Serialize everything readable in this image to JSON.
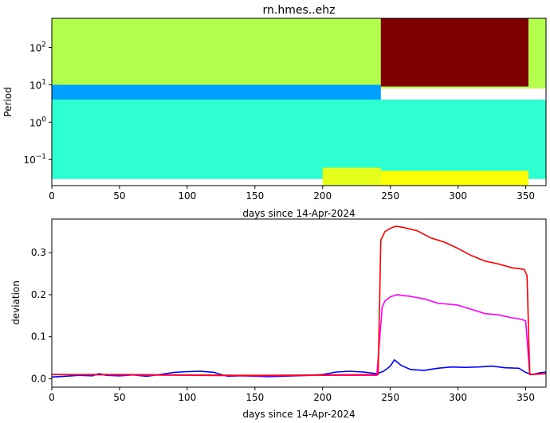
{
  "chart_data": [
    {
      "type": "heatmap",
      "title": "rn.hmes..ehz",
      "xlabel": "days since 14-Apr-2024",
      "ylabel": "Period",
      "xlim": [
        0,
        365
      ],
      "ylim": [
        0.02,
        600
      ],
      "yscale": "log",
      "x_ticks": [
        0,
        50,
        100,
        150,
        200,
        250,
        300,
        350
      ],
      "y_ticks": [
        {
          "value": 0.1,
          "label_base": "10",
          "label_exp": "−1"
        },
        {
          "value": 1,
          "label_base": "10",
          "label_exp": "0"
        },
        {
          "value": 10,
          "label_base": "10",
          "label_exp": "1"
        },
        {
          "value": 100,
          "label_base": "10",
          "label_exp": "2"
        }
      ],
      "colormap": "jet",
      "regions": [
        {
          "x": [
            0,
            365
          ],
          "period": [
            8,
            600
          ],
          "level": 0.55
        },
        {
          "x": [
            0,
            243
          ],
          "period": [
            4,
            10
          ],
          "level": 0.28
        },
        {
          "x": [
            0,
            365
          ],
          "period": [
            0.03,
            4
          ],
          "level": 0.42
        },
        {
          "x": [
            243,
            352
          ],
          "period": [
            9,
            600
          ],
          "level": 1.0
        },
        {
          "x": [
            243,
            352
          ],
          "period": [
            0.02,
            0.05
          ],
          "level": 0.62
        },
        {
          "x": [
            200,
            243
          ],
          "period": [
            0.02,
            0.06
          ],
          "level": 0.6
        }
      ]
    },
    {
      "type": "line",
      "xlabel": "days since 14-Apr-2024",
      "ylabel": "deviation",
      "xlim": [
        0,
        365
      ],
      "ylim": [
        -0.02,
        0.38
      ],
      "x_ticks": [
        0,
        50,
        100,
        150,
        200,
        250,
        300,
        350
      ],
      "y_ticks": [
        0.0,
        0.1,
        0.2,
        0.3
      ],
      "y_tick_labels": [
        "0.0",
        "0.1",
        "0.2",
        "0.3"
      ],
      "series": [
        {
          "color": "#0000ff",
          "points": [
            [
              0,
              0.004
            ],
            [
              10,
              0.006
            ],
            [
              20,
              0.008
            ],
            [
              30,
              0.007
            ],
            [
              35,
              0.012
            ],
            [
              40,
              0.008
            ],
            [
              50,
              0.007
            ],
            [
              60,
              0.009
            ],
            [
              70,
              0.006
            ],
            [
              80,
              0.01
            ],
            [
              90,
              0.015
            ],
            [
              100,
              0.017
            ],
            [
              110,
              0.018
            ],
            [
              120,
              0.015
            ],
            [
              125,
              0.01
            ],
            [
              130,
              0.006
            ],
            [
              140,
              0.007
            ],
            [
              150,
              0.006
            ],
            [
              160,
              0.005
            ],
            [
              170,
              0.006
            ],
            [
              180,
              0.007
            ],
            [
              190,
              0.008
            ],
            [
              200,
              0.01
            ],
            [
              210,
              0.016
            ],
            [
              220,
              0.018
            ],
            [
              230,
              0.016
            ],
            [
              240,
              0.012
            ],
            [
              245,
              0.018
            ],
            [
              250,
              0.03
            ],
            [
              253,
              0.045
            ],
            [
              258,
              0.032
            ],
            [
              265,
              0.022
            ],
            [
              275,
              0.02
            ],
            [
              285,
              0.025
            ],
            [
              295,
              0.028
            ],
            [
              305,
              0.027
            ],
            [
              315,
              0.028
            ],
            [
              325,
              0.03
            ],
            [
              335,
              0.026
            ],
            [
              345,
              0.025
            ],
            [
              350,
              0.015
            ],
            [
              355,
              0.01
            ],
            [
              360,
              0.014
            ],
            [
              365,
              0.016
            ]
          ]
        },
        {
          "color": "#ff00ff",
          "points": [
            [
              0,
              0.01
            ],
            [
              50,
              0.009
            ],
            [
              100,
              0.008
            ],
            [
              150,
              0.007
            ],
            [
              200,
              0.008
            ],
            [
              240,
              0.008
            ],
            [
              244,
              0.17
            ],
            [
              246,
              0.185
            ],
            [
              250,
              0.195
            ],
            [
              255,
              0.2
            ],
            [
              265,
              0.196
            ],
            [
              275,
              0.19
            ],
            [
              285,
              0.18
            ],
            [
              300,
              0.175
            ],
            [
              310,
              0.165
            ],
            [
              320,
              0.155
            ],
            [
              330,
              0.152
            ],
            [
              340,
              0.145
            ],
            [
              346,
              0.142
            ],
            [
              350,
              0.138
            ],
            [
              353,
              0.01
            ],
            [
              365,
              0.012
            ]
          ]
        },
        {
          "color": "#ff0000",
          "points": [
            [
              0,
              0.01
            ],
            [
              50,
              0.01
            ],
            [
              100,
              0.009
            ],
            [
              150,
              0.008
            ],
            [
              200,
              0.009
            ],
            [
              241,
              0.01
            ],
            [
              243,
              0.33
            ],
            [
              246,
              0.35
            ],
            [
              250,
              0.358
            ],
            [
              254,
              0.363
            ],
            [
              260,
              0.36
            ],
            [
              270,
              0.352
            ],
            [
              280,
              0.335
            ],
            [
              290,
              0.325
            ],
            [
              300,
              0.31
            ],
            [
              310,
              0.293
            ],
            [
              320,
              0.28
            ],
            [
              330,
              0.273
            ],
            [
              340,
              0.264
            ],
            [
              345,
              0.262
            ],
            [
              349,
              0.26
            ],
            [
              351,
              0.245
            ],
            [
              353,
              0.01
            ],
            [
              365,
              0.012
            ]
          ]
        }
      ]
    }
  ]
}
